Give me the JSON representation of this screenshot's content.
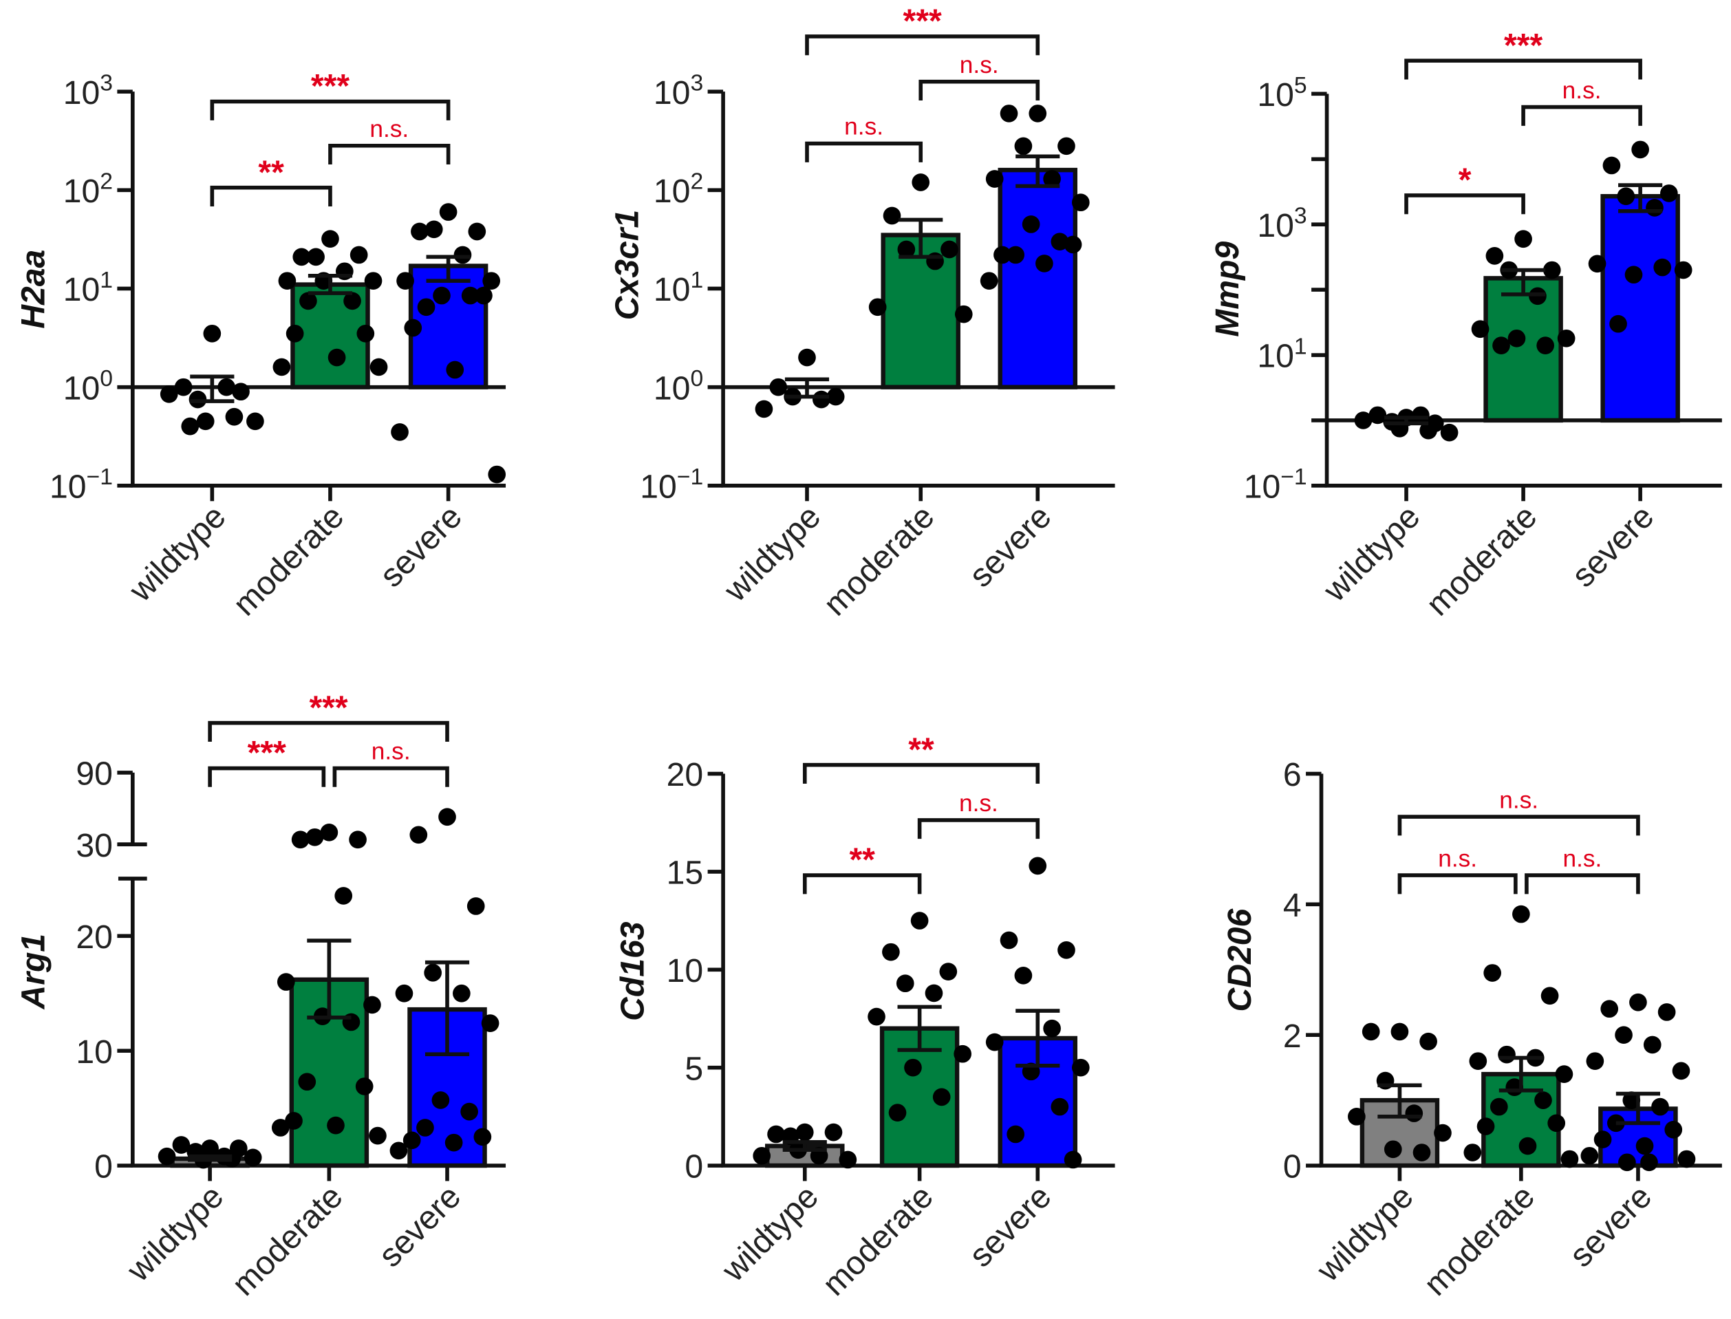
{
  "colors": {
    "wildtype": "#808080",
    "moderate": "#007f3f",
    "severe": "#0000ff",
    "significance": "#e0001b",
    "axis": "#111111"
  },
  "chart_data": [
    {
      "type": "bar",
      "ylabel": "H2aa",
      "yscale": "log",
      "ylim": [
        0.1,
        1000
      ],
      "yticks": [
        {
          "value": 0.1,
          "label": "10^-1"
        },
        {
          "value": 1,
          "label": "10^0"
        },
        {
          "value": 10,
          "label": "10^1"
        },
        {
          "value": 100,
          "label": "10^2"
        },
        {
          "value": 1000,
          "label": "10^3"
        }
      ],
      "categories": [
        "wildtype",
        "moderate",
        "severe"
      ],
      "groups": [
        {
          "mean": 1.0,
          "sem": [
            0.72,
            1.28
          ],
          "color_key": "wildtype",
          "bar": false,
          "points": [
            3.5,
            1.0,
            0.9,
            0.75,
            1.0,
            0.85,
            0.45,
            0.45,
            0.5,
            0.4
          ]
        },
        {
          "mean": 11,
          "sem": [
            9,
            13.5
          ],
          "color_key": "moderate",
          "bar": true,
          "points": [
            32,
            21,
            22,
            21,
            15,
            12,
            12,
            12,
            7.5,
            7.5,
            3.5,
            3.5,
            2,
            1.6,
            1.6
          ]
        },
        {
          "mean": 17,
          "sem": [
            12,
            21
          ],
          "color_key": "severe",
          "bar": true,
          "points": [
            60,
            38,
            38,
            40,
            22,
            12,
            12,
            8.5,
            8.5,
            6.5,
            8.5,
            4,
            1.5,
            0.35,
            0.13
          ]
        }
      ],
      "comparisons": [
        {
          "from": 0,
          "to": 1,
          "label": "**"
        },
        {
          "from": 1,
          "to": 2,
          "label": "n.s."
        },
        {
          "from": 0,
          "to": 2,
          "label": "***"
        }
      ]
    },
    {
      "type": "bar",
      "ylabel": "Cx3cr1",
      "yscale": "log",
      "ylim": [
        0.1,
        1000
      ],
      "yticks": [
        {
          "value": 0.1,
          "label": "10^-1"
        },
        {
          "value": 1,
          "label": "10^0"
        },
        {
          "value": 10,
          "label": "10^1"
        },
        {
          "value": 100,
          "label": "10^2"
        },
        {
          "value": 1000,
          "label": "10^3"
        }
      ],
      "categories": [
        "wildtype",
        "moderate",
        "severe"
      ],
      "groups": [
        {
          "mean": 1.0,
          "sem": [
            0.8,
            1.2
          ],
          "color_key": "wildtype",
          "bar": false,
          "points": [
            2,
            1,
            0.8,
            0.8,
            0.75,
            0.6
          ]
        },
        {
          "mean": 35,
          "sem": [
            21,
            50
          ],
          "color_key": "moderate",
          "bar": true,
          "points": [
            120,
            55,
            25,
            25,
            19,
            6.5,
            5.5
          ]
        },
        {
          "mean": 160,
          "sem": [
            110,
            220
          ],
          "color_key": "severe",
          "bar": true,
          "points": [
            600,
            600,
            280,
            280,
            130,
            130,
            75,
            45,
            30,
            22,
            28,
            22,
            18,
            12
          ]
        }
      ],
      "comparisons": [
        {
          "from": 0,
          "to": 1,
          "label": "n.s."
        },
        {
          "from": 1,
          "to": 2,
          "label": "n.s."
        },
        {
          "from": 0,
          "to": 2,
          "label": "***"
        }
      ]
    },
    {
      "type": "bar",
      "ylabel": "Mmp9",
      "yscale": "log",
      "ylim": [
        0.1,
        100000
      ],
      "yticks": [
        {
          "value": 0.1,
          "label": "10^-1"
        },
        {
          "value": 1,
          "label": ""
        },
        {
          "value": 10,
          "label": "10^1"
        },
        {
          "value": 100,
          "label": ""
        },
        {
          "value": 1000,
          "label": "10^3"
        },
        {
          "value": 10000,
          "label": ""
        },
        {
          "value": 100000,
          "label": "10^5"
        }
      ],
      "categories": [
        "wildtype",
        "moderate",
        "severe"
      ],
      "groups": [
        {
          "mean": 1.0,
          "sem": [
            0.9,
            1.1
          ],
          "color_key": "wildtype",
          "bar": false,
          "points": [
            1.1,
            1.2,
            0.9,
            0.95,
            1.2,
            1.0,
            0.65,
            0.75,
            0.7
          ]
        },
        {
          "mean": 150,
          "sem": [
            85,
            200
          ],
          "color_key": "moderate",
          "bar": true,
          "points": [
            600,
            330,
            200,
            200,
            80,
            25,
            18,
            18,
            14,
            14
          ]
        },
        {
          "mean": 2700,
          "sem": [
            1600,
            4000
          ],
          "color_key": "severe",
          "bar": true,
          "points": [
            14000,
            8000,
            3000,
            2700,
            1800,
            250,
            200,
            170,
            220,
            30
          ]
        }
      ],
      "comparisons": [
        {
          "from": 0,
          "to": 1,
          "label": "*"
        },
        {
          "from": 1,
          "to": 2,
          "label": "n.s."
        },
        {
          "from": 0,
          "to": 2,
          "label": "***"
        }
      ]
    },
    {
      "type": "bar",
      "ylabel": "Arg1",
      "yscale": "linear-broken",
      "ylim": [
        0,
        90
      ],
      "axis_break": [
        25,
        30
      ],
      "yticks": [
        {
          "value": 0,
          "label": "0"
        },
        {
          "value": 10,
          "label": "10"
        },
        {
          "value": 20,
          "label": "20"
        },
        {
          "value": 30,
          "label": "30"
        },
        {
          "value": 90,
          "label": "90"
        }
      ],
      "categories": [
        "wildtype",
        "moderate",
        "severe"
      ],
      "groups": [
        {
          "mean": 0.6,
          "sem": [
            0.5,
            0.8
          ],
          "color_key": "wildtype",
          "bar": true,
          "points": [
            1.5,
            1.8,
            1.5,
            1.2,
            0.8,
            0.8,
            0.7,
            0.5,
            0.6
          ]
        },
        {
          "mean": 16.2,
          "sem": [
            12.9,
            19.6
          ],
          "color_key": "moderate",
          "bar": true,
          "points": [
            40,
            34,
            34,
            36,
            23.5,
            16,
            14,
            13,
            12.5,
            7.3,
            6.9,
            3.9,
            3.5,
            3.3,
            2.6
          ]
        },
        {
          "mean": 13.6,
          "sem": [
            9.7,
            17.7
          ],
          "color_key": "severe",
          "bar": true,
          "points": [
            53,
            38,
            22.6,
            16.8,
            15,
            15,
            12.4,
            5.7,
            4.7,
            3.3,
            2.5,
            2.2,
            2.0,
            1.3
          ]
        }
      ],
      "comparisons": [
        {
          "from": 0,
          "to": 1,
          "label": "***"
        },
        {
          "from": 1,
          "to": 2,
          "label": "n.s."
        },
        {
          "from": 0,
          "to": 2,
          "label": "***"
        }
      ]
    },
    {
      "type": "bar",
      "ylabel": "Cd163",
      "yscale": "linear",
      "ylim": [
        0,
        20
      ],
      "yticks": [
        {
          "value": 0,
          "label": "0"
        },
        {
          "value": 5,
          "label": "5"
        },
        {
          "value": 10,
          "label": "10"
        },
        {
          "value": 15,
          "label": "15"
        },
        {
          "value": 20,
          "label": "20"
        }
      ],
      "categories": [
        "wildtype",
        "moderate",
        "severe"
      ],
      "groups": [
        {
          "mean": 1.0,
          "sem": [
            0.8,
            1.2
          ],
          "color_key": "wildtype",
          "bar": true,
          "points": [
            1.7,
            1.6,
            1.7,
            1.5,
            0.5,
            0.5,
            0.3,
            0.8
          ]
        },
        {
          "mean": 7.0,
          "sem": [
            5.9,
            8.1
          ],
          "color_key": "moderate",
          "bar": true,
          "points": [
            12.5,
            10.9,
            9.9,
            9.3,
            8.8,
            7.6,
            5.7,
            5.0,
            3.5,
            2.7
          ]
        },
        {
          "mean": 6.5,
          "sem": [
            5.1,
            7.9
          ],
          "color_key": "severe",
          "bar": true,
          "points": [
            15.3,
            11.5,
            11.0,
            9.7,
            7.0,
            6.3,
            5.0,
            4.8,
            3.0,
            1.6,
            0.3
          ]
        }
      ],
      "comparisons": [
        {
          "from": 0,
          "to": 1,
          "label": "**"
        },
        {
          "from": 1,
          "to": 2,
          "label": "n.s."
        },
        {
          "from": 0,
          "to": 2,
          "label": "**"
        }
      ]
    },
    {
      "type": "bar",
      "ylabel": "CD206",
      "yscale": "linear",
      "ylim": [
        0,
        6
      ],
      "yticks": [
        {
          "value": 0,
          "label": "0"
        },
        {
          "value": 2,
          "label": "2"
        },
        {
          "value": 4,
          "label": "4"
        },
        {
          "value": 6,
          "label": "6"
        }
      ],
      "categories": [
        "wildtype",
        "moderate",
        "severe"
      ],
      "groups": [
        {
          "mean": 1.0,
          "sem": [
            0.75,
            1.23
          ],
          "color_key": "wildtype",
          "bar": true,
          "points": [
            2.05,
            2.05,
            1.9,
            1.3,
            0.8,
            0.75,
            0.5,
            0.25,
            0.2
          ]
        },
        {
          "mean": 1.4,
          "sem": [
            1.15,
            1.65
          ],
          "color_key": "moderate",
          "bar": true,
          "points": [
            3.85,
            2.95,
            2.6,
            1.7,
            1.65,
            1.6,
            1.4,
            1.2,
            1.0,
            0.9,
            0.65,
            0.6,
            0.3,
            0.2,
            0.1
          ]
        },
        {
          "mean": 0.87,
          "sem": [
            0.65,
            1.1
          ],
          "color_key": "severe",
          "bar": true,
          "points": [
            2.5,
            2.4,
            2.35,
            2.0,
            1.85,
            1.6,
            1.45,
            1.0,
            0.9,
            0.65,
            0.55,
            0.4,
            0.3,
            0.15,
            0.1,
            0.05,
            0.05
          ]
        }
      ],
      "comparisons": [
        {
          "from": 0,
          "to": 1,
          "label": "n.s."
        },
        {
          "from": 1,
          "to": 2,
          "label": "n.s."
        },
        {
          "from": 0,
          "to": 2,
          "label": "n.s."
        }
      ]
    }
  ]
}
